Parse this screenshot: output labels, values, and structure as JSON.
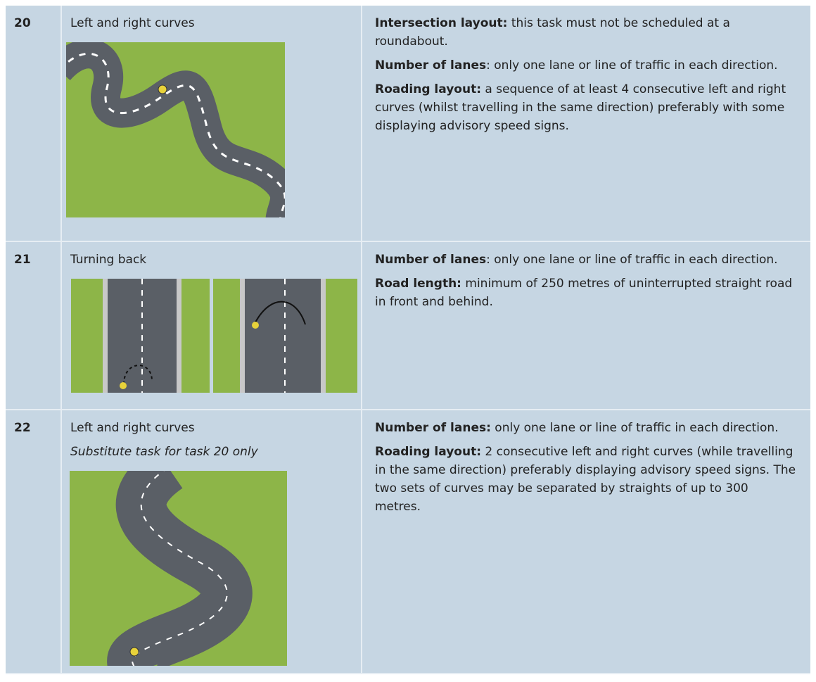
{
  "table": {
    "rows": [
      {
        "number": "20",
        "task": "Left and right curves",
        "requirements": [
          {
            "label": "Intersection layout:",
            "text": " this task must not be scheduled at a roundabout."
          },
          {
            "label": "Number of lanes",
            "text": ": only one lane or line of traffic in each direction."
          },
          {
            "label": "Roading layout:",
            "text": " a sequence of at least 4 consecutive left and right curves (whilst travelling in the same direction) preferably with some displaying advisory speed signs."
          }
        ]
      },
      {
        "number": "21",
        "task": "Turning back",
        "requirements": [
          {
            "label": "Number of lanes",
            "text": ": only one lane or line of traffic in each direction."
          },
          {
            "label": "Road length:",
            "text": " minimum of 250 metres of uninterrupted straight road in front and behind."
          }
        ]
      },
      {
        "number": "22",
        "task": "Left and right curves",
        "note": "Substitute task for task 20 only",
        "requirements": [
          {
            "label": "Number of lanes:",
            "text": " only one lane or line of traffic in each direction."
          },
          {
            "label": "Roading layout:",
            "text": " 2 consecutive left and right curves (while travelling in the same direction) preferably displaying advisory speed signs. The two sets of curves may be separated by straights of up to 300 metres."
          }
        ]
      }
    ]
  }
}
